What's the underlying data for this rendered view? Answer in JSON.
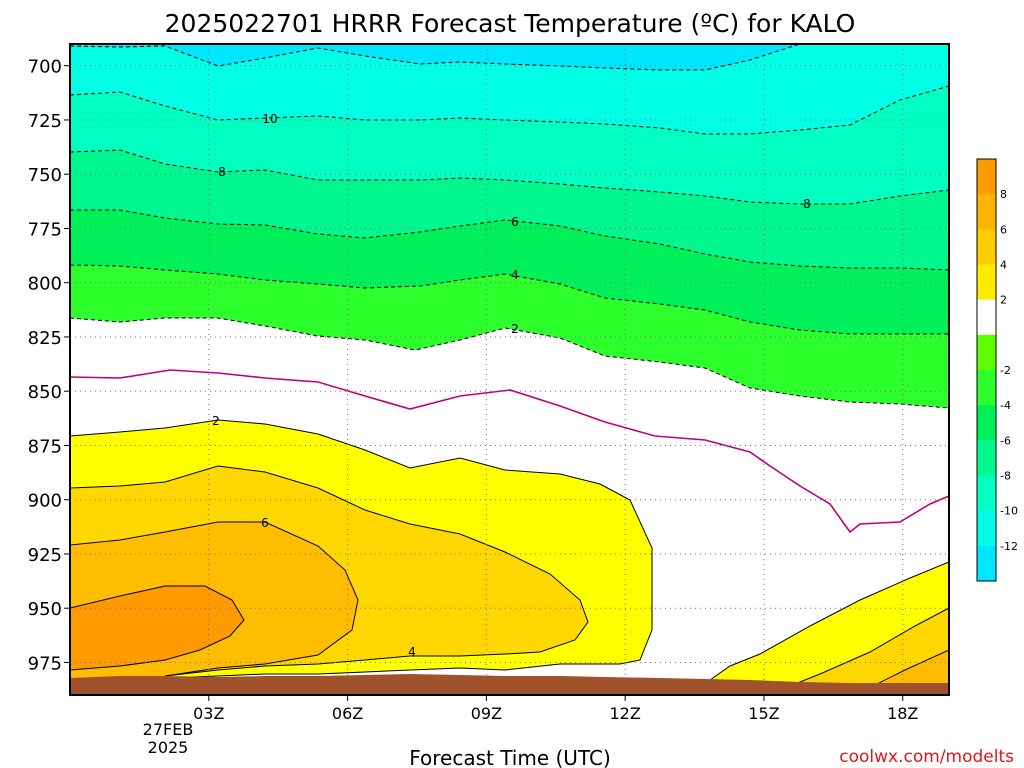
{
  "chart_data": {
    "type": "time-pressure cross section (filled contour)",
    "title": "2025022701 HRRR Forecast Temperature (ºC) for KALO",
    "xlabel": "Forecast Time (UTC)",
    "x_tick_labels": [
      "03Z",
      "06Z",
      "09Z",
      "12Z",
      "15Z",
      "18Z"
    ],
    "x_date_label": [
      "27FEB",
      "2025"
    ],
    "x_range_hours": [
      0,
      19
    ],
    "y_tick_labels": [
      "700",
      "725",
      "750",
      "775",
      "800",
      "825",
      "850",
      "875",
      "900",
      "925",
      "950",
      "975"
    ],
    "y_range_hPa": [
      690,
      990
    ],
    "y_inverted": true,
    "grid": "dotted at every tick",
    "colorbar": {
      "position": "right",
      "tick_labels": [
        "8",
        "6",
        "4",
        "2",
        "-2",
        "-4",
        "-6",
        "-8",
        "-10",
        "-12"
      ],
      "levels": [
        {
          "range": [
            8,
            10
          ],
          "color": "#ff9b00"
        },
        {
          "range": [
            6,
            8
          ],
          "color": "#ffb400"
        },
        {
          "range": [
            4,
            6
          ],
          "color": "#ffcd00"
        },
        {
          "range": [
            2,
            4
          ],
          "color": "#ffea00"
        },
        {
          "range": [
            -2,
            2
          ],
          "color": "#ffffff"
        },
        {
          "range": [
            -4,
            -2
          ],
          "color": "#5dff00"
        },
        {
          "range": [
            -6,
            -4
          ],
          "color": "#2cff2c"
        },
        {
          "range": [
            -8,
            -6
          ],
          "color": "#00f05a"
        },
        {
          "range": [
            -10,
            -8
          ],
          "color": "#00f78e"
        },
        {
          "range": [
            -12,
            -10
          ],
          "color": "#00ffc0"
        },
        {
          "range": [
            -14,
            -12
          ],
          "color": "#00ffe4"
        },
        {
          "range": [
            -16,
            -14
          ],
          "color": "#00e6ff"
        }
      ]
    },
    "contour_labels": [
      "10",
      "8",
      "6",
      "4",
      "2",
      "8",
      "2",
      "4",
      "6"
    ],
    "freezing_line": {
      "color": "#c00078",
      "description": "0 °C isotherm"
    },
    "ground_color": "#a0522d",
    "credit": "coolwx.com/modelts"
  }
}
